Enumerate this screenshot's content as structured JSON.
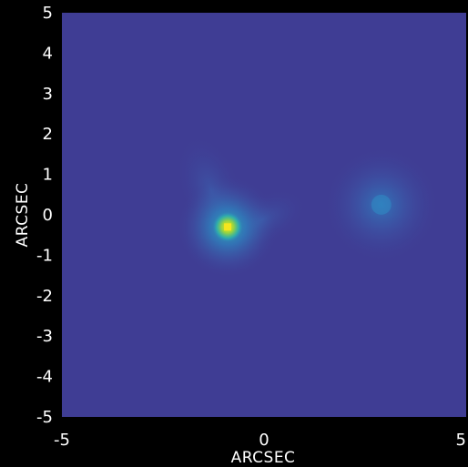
{
  "chart_data": {
    "type": "heatmap",
    "title": "",
    "xlabel": "ARCSEC",
    "ylabel": "ARCSEC",
    "xlim": [
      -5,
      5
    ],
    "ylim": [
      -5,
      5
    ],
    "x_ticks": [
      "-5",
      "0",
      "5"
    ],
    "y_ticks": [
      "5",
      "4",
      "3",
      "2",
      "1",
      "0",
      "-1",
      "-2",
      "-3",
      "-4",
      "-5"
    ],
    "grid": false,
    "colormap": "viridis",
    "colors": {
      "background": "#3f3d94",
      "low": "#443b90",
      "mid": "#2d87c8",
      "high": "#f4e61e"
    },
    "sources": [
      {
        "name": "",
        "x": -0.9,
        "y": -0.3,
        "peak": 1.0,
        "sigma": 0.35
      },
      {
        "name": "",
        "x": 2.9,
        "y": 0.25,
        "peak": 0.18,
        "sigma": 0.45
      }
    ]
  }
}
